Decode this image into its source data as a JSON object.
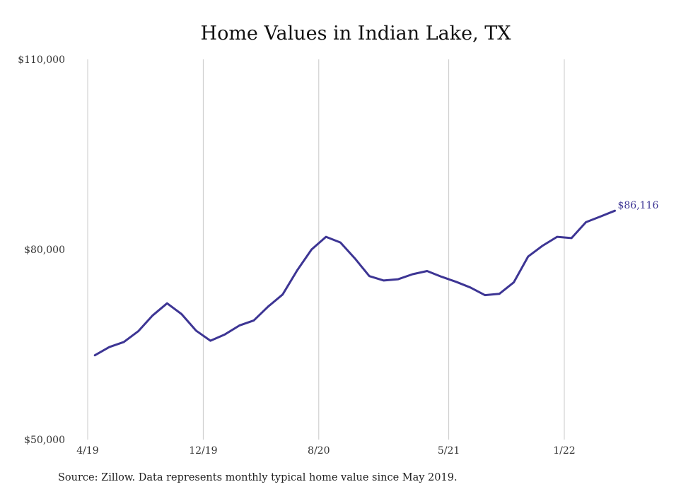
{
  "chart_data": {
    "type": "line",
    "title": "Home Values in Indian Lake, TX",
    "xlabel": "",
    "ylabel": "",
    "ylim": [
      50000,
      110000
    ],
    "yticks": [
      {
        "value": 50000,
        "label": "$50,000"
      },
      {
        "value": 80000,
        "label": "$80,000"
      },
      {
        "value": 110000,
        "label": "$110,000"
      }
    ],
    "xticks": [
      {
        "value": 0,
        "label": "4/19"
      },
      {
        "value": 8,
        "label": "12/19"
      },
      {
        "value": 16,
        "label": "8/20"
      },
      {
        "value": 25,
        "label": "5/21"
      },
      {
        "value": 33,
        "label": "1/22"
      }
    ],
    "xlim": [
      0,
      40
    ],
    "grid": "vertical",
    "legend": "none",
    "line_color": "#3d3594",
    "series": [
      {
        "x": [
          0.5,
          1.5,
          2.5,
          3.5,
          4.5,
          5.5,
          6.5,
          7.5,
          8.5,
          9.5,
          10.5,
          11.5,
          12.5,
          13.5,
          14.5,
          15.5,
          16.5,
          17.5,
          18.5,
          19.5,
          20.5,
          21.5,
          22.5,
          23.5,
          24.5,
          25.5,
          26.5,
          27.5,
          28.5,
          29.5,
          30.5,
          31.5,
          32.5,
          33.5,
          34.5,
          35.5,
          36.5
        ],
        "values": [
          63300,
          64600,
          65400,
          67100,
          69600,
          71500,
          69800,
          67200,
          65600,
          66600,
          68000,
          68800,
          71000,
          72900,
          76700,
          80000,
          82000,
          81100,
          78600,
          75800,
          75100,
          75300,
          76100,
          76600,
          75700,
          74900,
          74000,
          72800,
          73000,
          74800,
          78900,
          80600,
          82000,
          81800,
          84300,
          85200,
          86116
        ]
      }
    ],
    "end_label": "$86,116"
  },
  "source_note": "Source: Zillow. Data represents monthly typical home value since May 2019."
}
